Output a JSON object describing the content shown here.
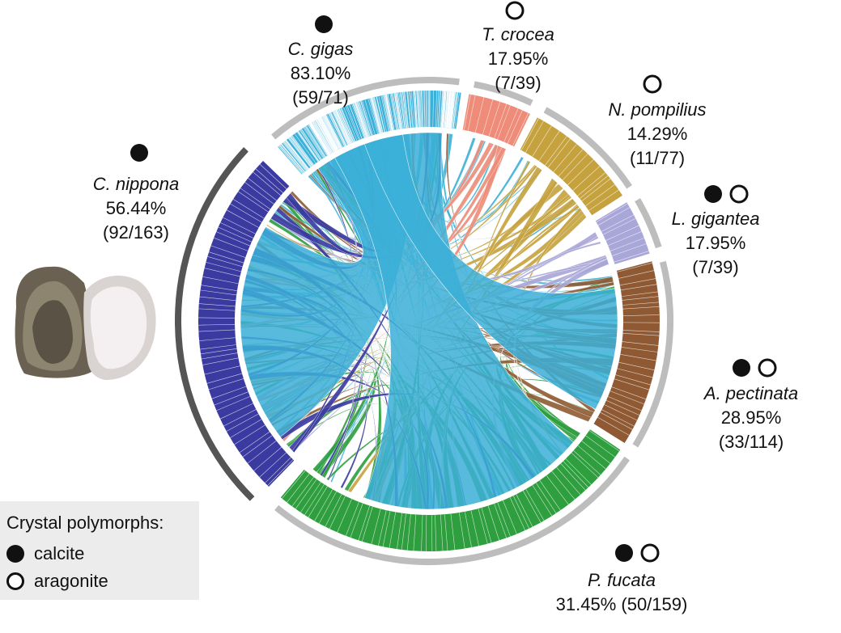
{
  "species": [
    {
      "id": "c-gigas",
      "name": "C. gigas",
      "percent": "83.10%",
      "ratio": "(59/71)",
      "color": "#3bb0d8",
      "polymorph": [
        "calcite"
      ]
    },
    {
      "id": "t-crocea",
      "name": "T. crocea",
      "percent": "17.95%",
      "ratio": "(7/39)",
      "color": "#ee8c79",
      "polymorph": [
        "aragonite"
      ]
    },
    {
      "id": "n-pompilius",
      "name": "N. pompilius",
      "percent": "14.29%",
      "ratio": "(11/77)",
      "color": "#c6a23e",
      "polymorph": [
        "aragonite"
      ]
    },
    {
      "id": "l-gigantea",
      "name": "L. gigantea",
      "percent": "17.95%",
      "ratio": "(7/39)",
      "color": "#a9a6d8",
      "polymorph": [
        "calcite",
        "aragonite"
      ]
    },
    {
      "id": "a-pectinata",
      "name": "A. pectinata",
      "percent": "28.95%",
      "ratio": "(33/114)",
      "color": "#8f5a33",
      "polymorph": [
        "calcite",
        "aragonite"
      ]
    },
    {
      "id": "p-fucata",
      "name": "P. fucata",
      "percent": "31.45%",
      "ratio": "(50/159)",
      "color": "#2e9e3e",
      "polymorph": [
        "calcite",
        "aragonite"
      ]
    },
    {
      "id": "c-nippona",
      "name": "C. nippona",
      "percent": "56.44%",
      "ratio": "(92/163)",
      "color": "#3a3aa0",
      "polymorph": [
        "calcite"
      ]
    }
  ],
  "legend": {
    "title": "Crystal polymorphs:",
    "items": [
      {
        "label": "calcite",
        "icon": "filled-circle-icon"
      },
      {
        "label": "aragonite",
        "icon": "open-circle-icon"
      }
    ]
  },
  "colors": {
    "highlight_arc": "#555555",
    "outer_arc": "#bdbdbd"
  }
}
